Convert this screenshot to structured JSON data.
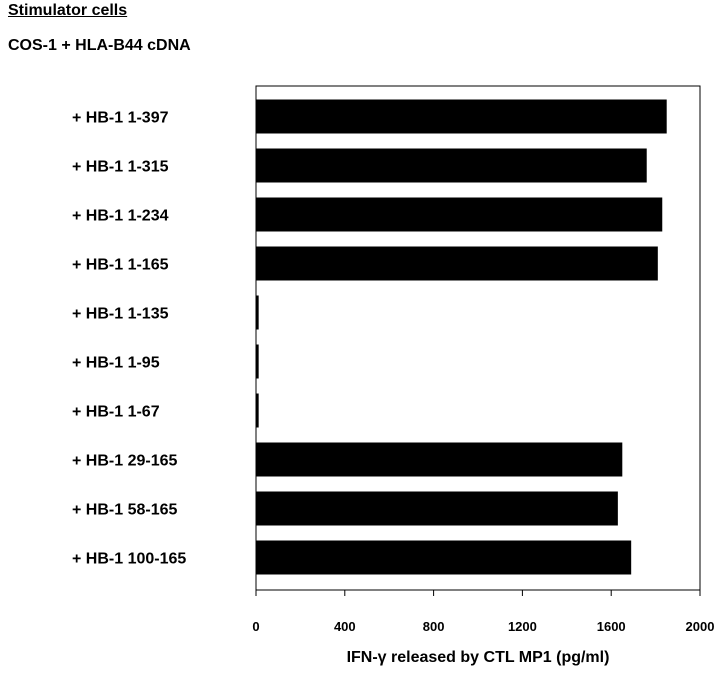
{
  "header": {
    "title": "Stimulator cells",
    "subtitle": "COS-1  + HLA-B44 cDNA"
  },
  "chart_data": {
    "type": "bar",
    "orientation": "horizontal",
    "categories": [
      "+ HB-1 1-397",
      "+ HB-1 1-315",
      "+ HB-1 1-234",
      "+ HB-1 1-165",
      "+ HB-1 1-135",
      "+ HB-1 1-95",
      "+ HB-1 1-67",
      "+ HB-1 29-165",
      "+ HB-1 58-165",
      "+ HB-1 100-165"
    ],
    "values": [
      1850,
      1760,
      1830,
      1810,
      12,
      12,
      12,
      1650,
      1630,
      1690
    ],
    "xlim": [
      0,
      2000
    ],
    "xticks": [
      0,
      400,
      800,
      1200,
      1600,
      2000
    ],
    "xlabel": "IFN-γ  released by CTL MP1 (pg/ml)",
    "ylabel": "",
    "bar_color": "#000000",
    "grid": false
  }
}
